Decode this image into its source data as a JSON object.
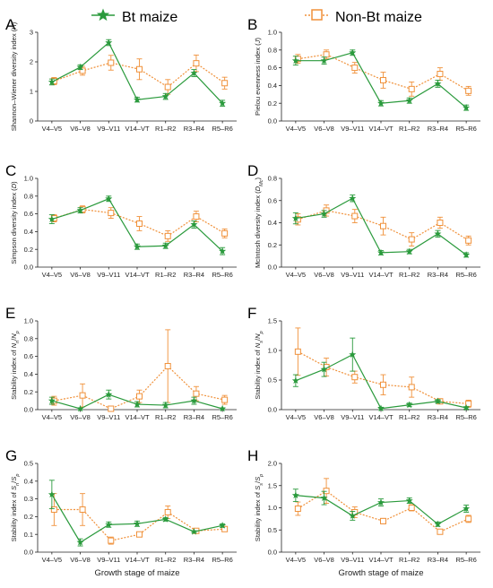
{
  "legend": {
    "bt_label": "Bt maize",
    "nonbt_label": "Non-Bt maize"
  },
  "colors": {
    "bt": "#2a9a3c",
    "nonbt": "#f0913a",
    "axis": "#222222"
  },
  "icons": {
    "bt_marker": "star-icon",
    "nonbt_marker": "open-square-icon"
  },
  "chart_data": [
    {
      "panel": "A",
      "type": "line",
      "ylabel": [
        "Shannon–Wiener diversity index (",
        "H",
        ")"
      ],
      "categories": [
        "V4–V5",
        "V6–V8",
        "V9–V11",
        "V14–VT",
        "R1–R2",
        "R3–R4",
        "R5–R6"
      ],
      "xlabel": "",
      "ylim": [
        0,
        3
      ],
      "yticks": [
        0,
        1,
        2,
        3
      ],
      "series": [
        {
          "name": "Bt maize",
          "values": [
            1.32,
            1.82,
            2.65,
            0.72,
            0.83,
            1.62,
            0.6
          ],
          "errors": [
            0.1,
            0.08,
            0.1,
            0.08,
            0.1,
            0.12,
            0.1
          ]
        },
        {
          "name": "Non-Bt maize",
          "values": [
            1.35,
            1.7,
            1.97,
            1.75,
            1.15,
            1.95,
            1.28
          ],
          "errors": [
            0.12,
            0.15,
            0.25,
            0.35,
            0.25,
            0.28,
            0.2
          ]
        }
      ]
    },
    {
      "panel": "B",
      "type": "line",
      "ylabel": [
        "Pielou evenness index (",
        "J",
        ")"
      ],
      "categories": [
        "V4–V5",
        "V6–V8",
        "V9–V11",
        "V14–VT",
        "R1–R2",
        "R3–R4",
        "R5–R6"
      ],
      "xlabel": "",
      "ylim": [
        0,
        1
      ],
      "yticks": [
        0.0,
        0.2,
        0.4,
        0.6,
        0.8,
        1.0
      ],
      "series": [
        {
          "name": "Bt maize",
          "values": [
            0.68,
            0.68,
            0.77,
            0.2,
            0.23,
            0.42,
            0.15
          ],
          "errors": [
            0.05,
            0.04,
            0.03,
            0.03,
            0.03,
            0.04,
            0.03
          ]
        },
        {
          "name": "Non-Bt maize",
          "values": [
            0.7,
            0.75,
            0.6,
            0.46,
            0.36,
            0.53,
            0.34
          ],
          "errors": [
            0.05,
            0.05,
            0.06,
            0.09,
            0.08,
            0.07,
            0.05
          ]
        }
      ]
    },
    {
      "panel": "C",
      "type": "line",
      "ylabel": [
        "Simpson diversity index (",
        "D",
        ")"
      ],
      "categories": [
        "V4–V5",
        "V6–V8",
        "V9–V11",
        "V14–VT",
        "R1–R2",
        "R3–R4",
        "R5–R6"
      ],
      "xlabel": "",
      "ylim": [
        0,
        1
      ],
      "yticks": [
        0.0,
        0.2,
        0.4,
        0.6,
        0.8,
        1.0
      ],
      "series": [
        {
          "name": "Bt maize",
          "values": [
            0.54,
            0.64,
            0.77,
            0.23,
            0.24,
            0.48,
            0.18
          ],
          "errors": [
            0.05,
            0.03,
            0.03,
            0.03,
            0.03,
            0.04,
            0.04
          ]
        },
        {
          "name": "Non-Bt maize",
          "values": [
            0.55,
            0.65,
            0.61,
            0.49,
            0.35,
            0.57,
            0.38
          ],
          "errors": [
            0.04,
            0.04,
            0.06,
            0.08,
            0.06,
            0.06,
            0.05
          ]
        }
      ]
    },
    {
      "panel": "D",
      "type": "line",
      "ylabel": [
        "McIntosh diversity index (",
        "D",
        "Mc",
        ")"
      ],
      "categories": [
        "V4–V5",
        "V6–V8",
        "V9–V11",
        "V14–VT",
        "R1–R2",
        "R3–R4",
        "R5–R6"
      ],
      "xlabel": "",
      "ylim": [
        0,
        0.8
      ],
      "yticks": [
        0.0,
        0.2,
        0.4,
        0.6,
        0.8
      ],
      "series": [
        {
          "name": "Bt maize",
          "values": [
            0.44,
            0.48,
            0.62,
            0.13,
            0.14,
            0.3,
            0.11
          ],
          "errors": [
            0.05,
            0.03,
            0.03,
            0.02,
            0.02,
            0.03,
            0.02
          ]
        },
        {
          "name": "Non-Bt maize",
          "values": [
            0.43,
            0.51,
            0.46,
            0.37,
            0.25,
            0.4,
            0.24
          ],
          "errors": [
            0.05,
            0.05,
            0.06,
            0.08,
            0.06,
            0.05,
            0.04
          ]
        }
      ]
    },
    {
      "panel": "E",
      "type": "line",
      "ylabel": [
        "Stability index of ",
        "N",
        "n",
        "/",
        "N",
        "p",
        ""
      ],
      "categories": [
        "V4–V5",
        "V6–V8",
        "V9–V11",
        "V14–VT",
        "R1–R2",
        "R3–R4",
        "R5–R6"
      ],
      "xlabel": "",
      "ylim": [
        0,
        1
      ],
      "yticks": [
        0.0,
        0.2,
        0.4,
        0.6,
        0.8,
        1.0
      ],
      "series": [
        {
          "name": "Bt maize",
          "values": [
            0.1,
            0.01,
            0.17,
            0.06,
            0.05,
            0.1,
            0.01
          ],
          "errors": [
            0.04,
            0.01,
            0.05,
            0.03,
            0.03,
            0.04,
            0.01
          ]
        },
        {
          "name": "Non-Bt maize",
          "values": [
            0.1,
            0.16,
            0.01,
            0.15,
            0.49,
            0.18,
            0.11
          ],
          "errors": [
            0.05,
            0.13,
            0.02,
            0.07,
            0.41,
            0.08,
            0.05
          ]
        }
      ]
    },
    {
      "panel": "F",
      "type": "line",
      "ylabel": [
        "Stability index of ",
        "N",
        "s",
        "/",
        "N",
        "p",
        ""
      ],
      "categories": [
        "V4–V5",
        "V6–V8",
        "V9–V11",
        "V14–VT",
        "R1–R2",
        "R3–R4",
        "R5–R6"
      ],
      "xlabel": "",
      "ylim": [
        0,
        1.5
      ],
      "yticks": [
        0.0,
        0.5,
        1.0,
        1.5
      ],
      "series": [
        {
          "name": "Bt maize",
          "values": [
            0.49,
            0.68,
            0.93,
            0.02,
            0.08,
            0.14,
            0.03
          ],
          "errors": [
            0.1,
            0.12,
            0.28,
            0.02,
            0.03,
            0.03,
            0.02
          ]
        },
        {
          "name": "Non-Bt maize",
          "values": [
            0.98,
            0.72,
            0.55,
            0.42,
            0.38,
            0.14,
            0.1
          ],
          "errors": [
            0.4,
            0.15,
            0.1,
            0.17,
            0.17,
            0.04,
            0.06
          ]
        }
      ]
    },
    {
      "panel": "G",
      "type": "line",
      "ylabel": [
        "Stability index of ",
        "S",
        "n",
        "/",
        "S",
        "p",
        ""
      ],
      "categories": [
        "V4–V5",
        "V6–V8",
        "V9–V11",
        "V14–VT",
        "R1–R2",
        "R3–R4",
        "R5–R6"
      ],
      "xlabel": "Growth stage of maize",
      "ylim": [
        0,
        0.5
      ],
      "yticks": [
        0.0,
        0.1,
        0.2,
        0.3,
        0.4,
        0.5
      ],
      "series": [
        {
          "name": "Bt maize",
          "values": [
            0.325,
            0.055,
            0.155,
            0.16,
            0.185,
            0.115,
            0.15
          ],
          "errors": [
            0.08,
            0.02,
            0.015,
            0.015,
            0.01,
            0.005,
            0.01
          ]
        },
        {
          "name": "Non-Bt maize",
          "values": [
            0.24,
            0.24,
            0.065,
            0.1,
            0.225,
            0.12,
            0.13
          ],
          "errors": [
            0.09,
            0.09,
            0.02,
            0.01,
            0.035,
            0.01,
            0.01
          ]
        }
      ]
    },
    {
      "panel": "H",
      "type": "line",
      "ylabel": [
        "Stability index of ",
        "S",
        "s",
        "/",
        "S",
        "p",
        ""
      ],
      "categories": [
        "V4–V5",
        "V6–V8",
        "V9–V11",
        "V14–VT",
        "R1–R2",
        "R3–R4",
        "R5–R6"
      ],
      "xlabel": "Growth stage of maize",
      "ylim": [
        0,
        2
      ],
      "yticks": [
        0.0,
        0.5,
        1.0,
        1.5,
        2.0
      ],
      "series": [
        {
          "name": "Bt maize",
          "values": [
            1.28,
            1.22,
            0.82,
            1.12,
            1.16,
            0.63,
            0.98
          ],
          "errors": [
            0.14,
            0.15,
            0.1,
            0.08,
            0.06,
            0.05,
            0.08
          ]
        },
        {
          "name": "Non-Bt maize",
          "values": [
            0.98,
            1.38,
            0.9,
            0.7,
            1.0,
            0.46,
            0.75
          ],
          "errors": [
            0.15,
            0.28,
            0.12,
            0.06,
            0.07,
            0.03,
            0.08
          ]
        }
      ]
    }
  ]
}
